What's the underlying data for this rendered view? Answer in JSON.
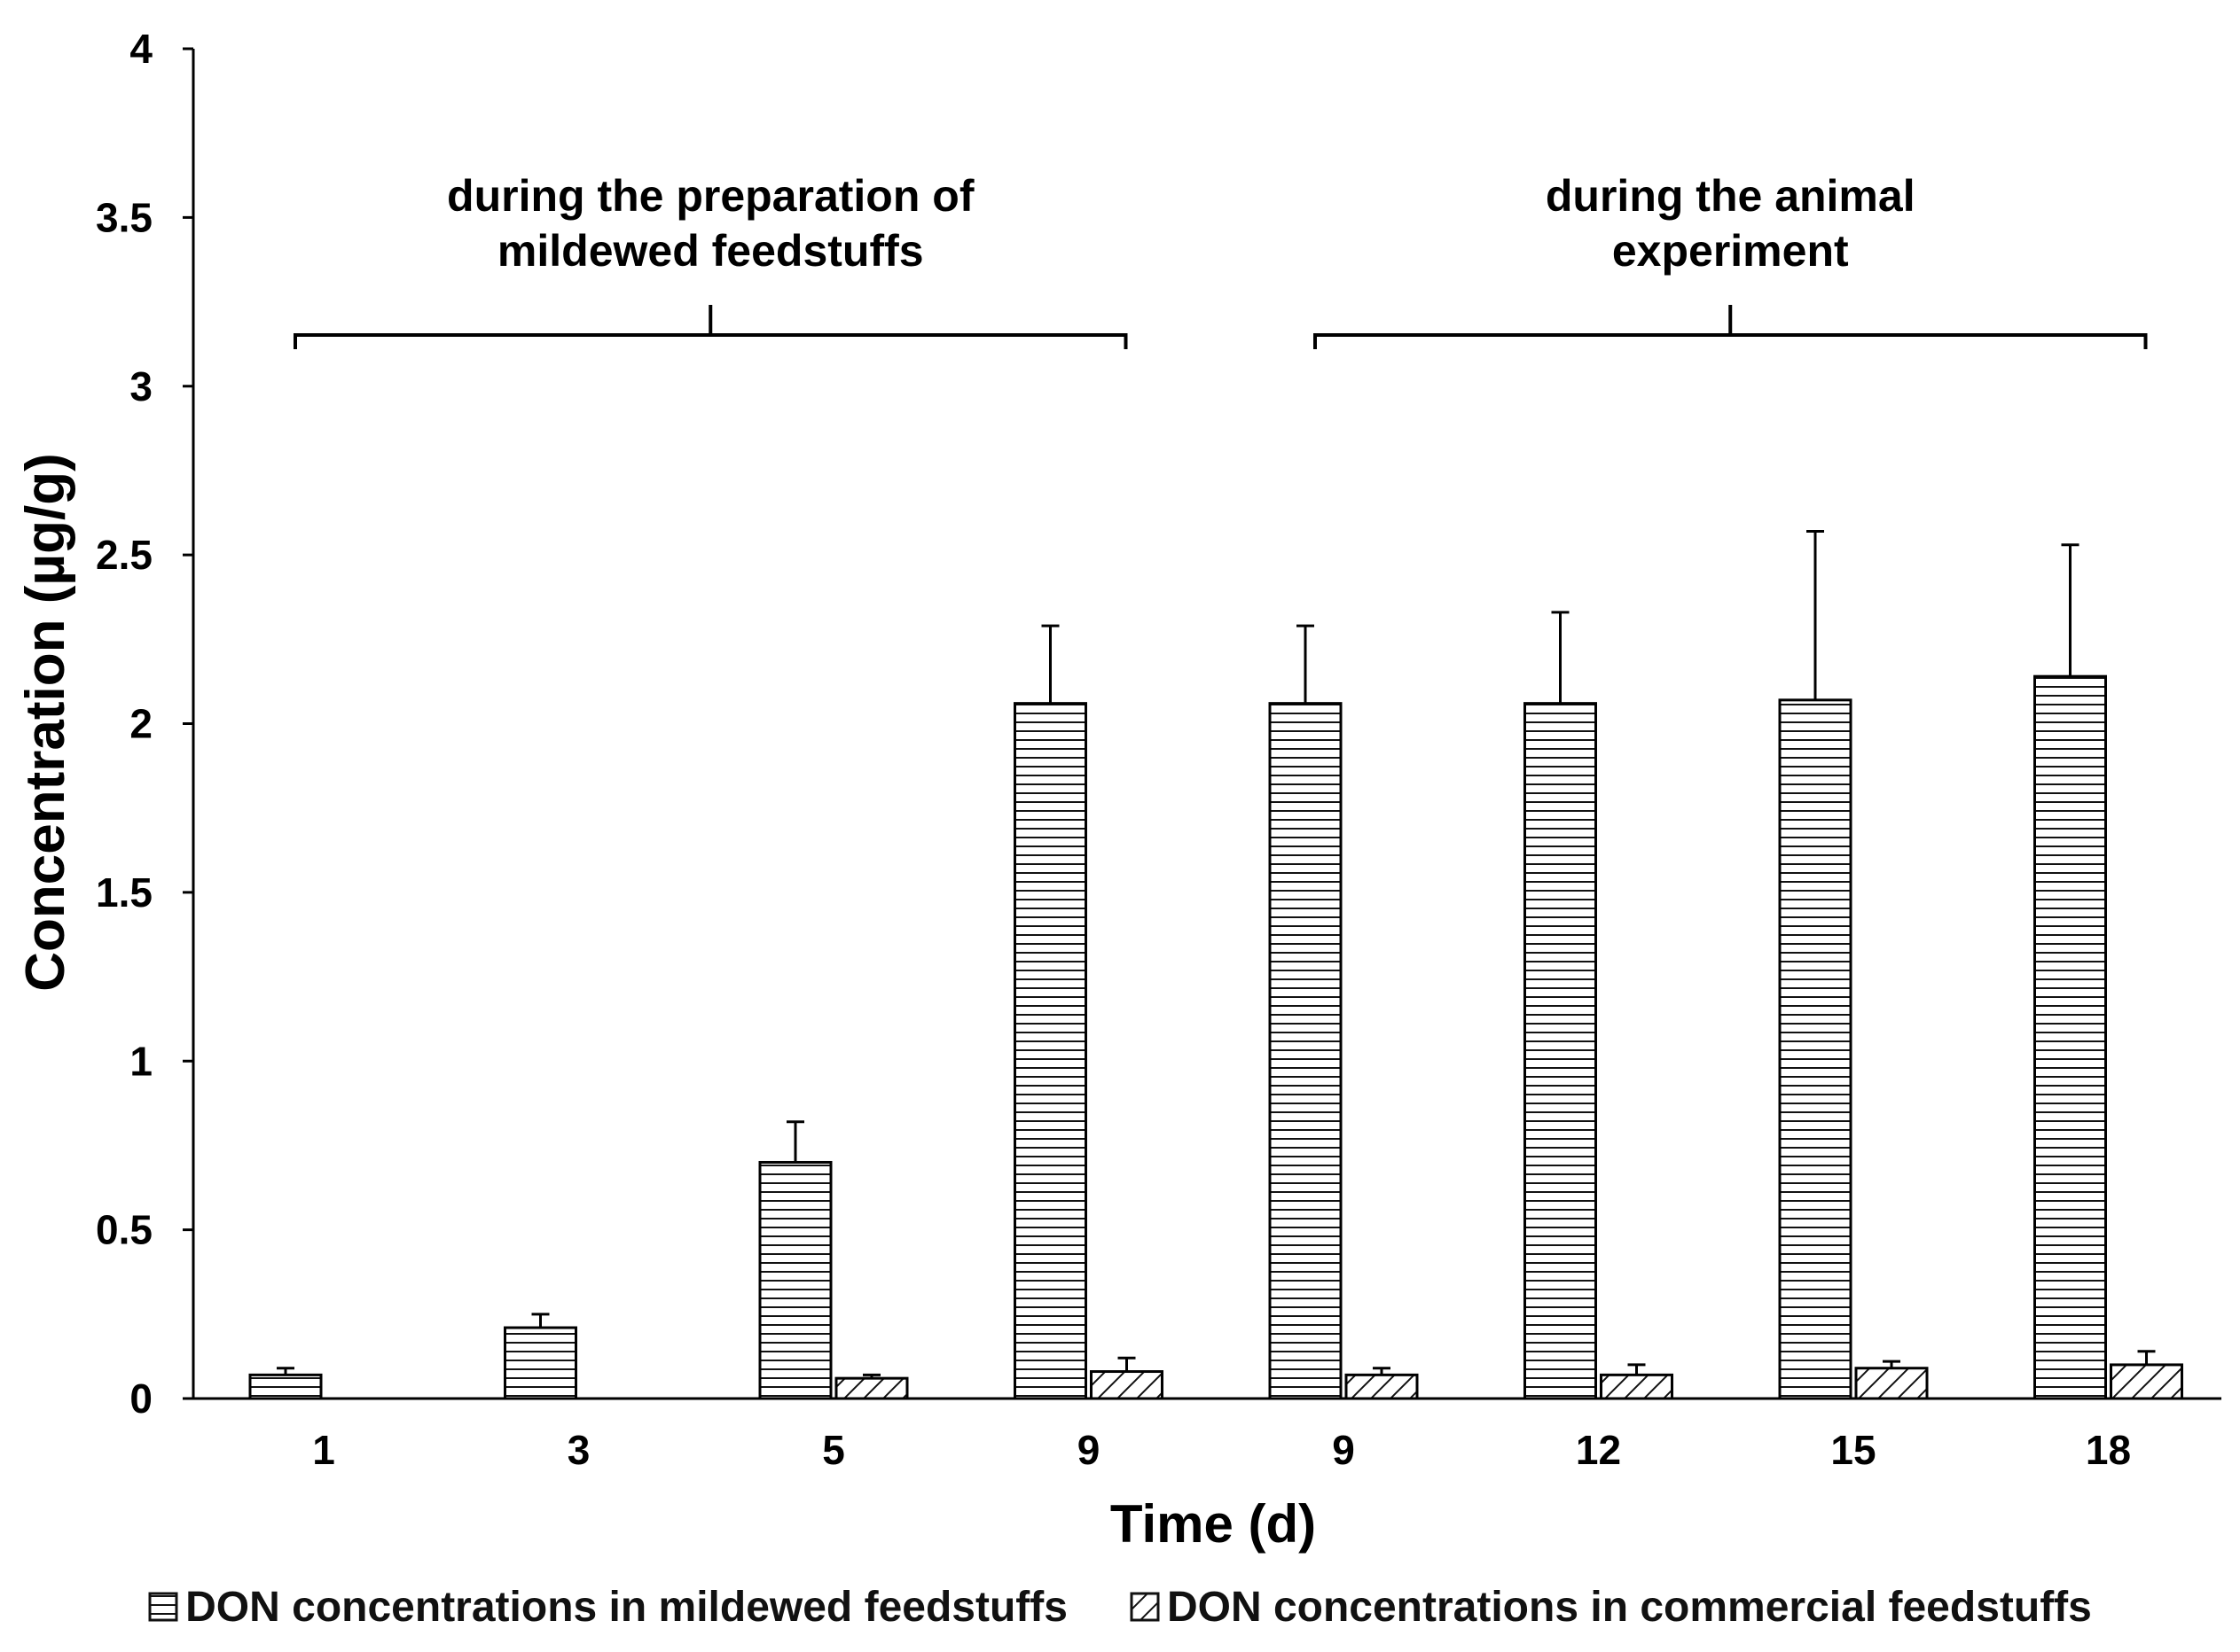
{
  "chart_data": {
    "type": "bar",
    "xlabel": "Time (d)",
    "ylabel": "Concentration (µg/g)",
    "ylim": [
      0,
      4
    ],
    "yticks": [
      "0",
      "0.5",
      "1",
      "1.5",
      "2",
      "2.5",
      "3",
      "3.5",
      "4"
    ],
    "categories": [
      "1",
      "3",
      "5",
      "9",
      "9",
      "12",
      "15",
      "18"
    ],
    "series": [
      {
        "name": "DON concentrations in mildewed feedstuffs",
        "pattern": "horizontal-lines",
        "values": [
          0.07,
          0.21,
          0.7,
          2.06,
          2.06,
          2.06,
          2.07,
          2.14
        ],
        "errors": [
          0.02,
          0.04,
          0.12,
          0.23,
          0.23,
          0.27,
          0.5,
          0.39
        ]
      },
      {
        "name": "DON concentrations in commercial feedstuffs",
        "pattern": "diagonal-lines",
        "values": [
          0.0,
          0.0,
          0.06,
          0.08,
          0.07,
          0.07,
          0.09,
          0.1
        ],
        "errors": [
          0.0,
          0.0,
          0.01,
          0.04,
          0.02,
          0.03,
          0.02,
          0.04
        ]
      }
    ],
    "annotations": [
      {
        "text_lines": [
          "during the preparation of",
          "mildewed feedstuffs"
        ],
        "span": [
          0,
          3
        ]
      },
      {
        "text_lines": [
          "during the animal",
          "experiment"
        ],
        "span": [
          4,
          7
        ]
      }
    ],
    "legend_position": "bottom"
  }
}
